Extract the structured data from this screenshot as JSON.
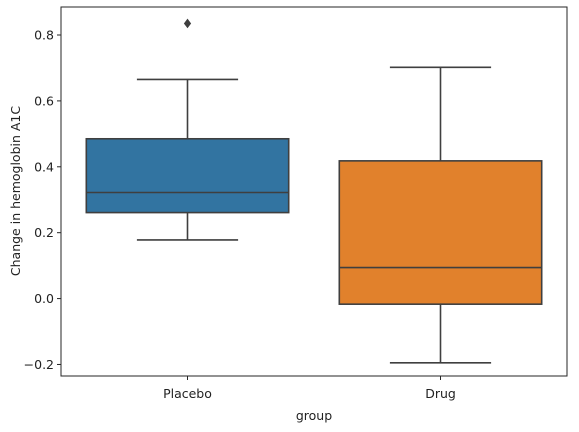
{
  "chart_data": {
    "type": "box",
    "xlabel": "group",
    "ylabel": "Change in hemoglobin A1C",
    "ylim": [
      -0.235,
      0.885
    ],
    "yticks": [
      -0.2,
      0.0,
      0.2,
      0.4,
      0.6,
      0.8
    ],
    "ytick_labels": [
      "−0.2",
      "0.0",
      "0.2",
      "0.4",
      "0.6",
      "0.8"
    ],
    "grid": false,
    "legend": "none",
    "categories": [
      "Placebo",
      "Drug"
    ],
    "boxes": [
      {
        "category": "Placebo",
        "color": "#3274a1",
        "whisker_low": 0.178,
        "q1": 0.261,
        "median": 0.322,
        "q3": 0.485,
        "whisker_high": 0.665,
        "outliers": [
          0.835
        ]
      },
      {
        "category": "Drug",
        "color": "#e1812c",
        "whisker_low": -0.195,
        "q1": -0.017,
        "median": 0.094,
        "q3": 0.418,
        "whisker_high": 0.702,
        "outliers": []
      }
    ]
  }
}
